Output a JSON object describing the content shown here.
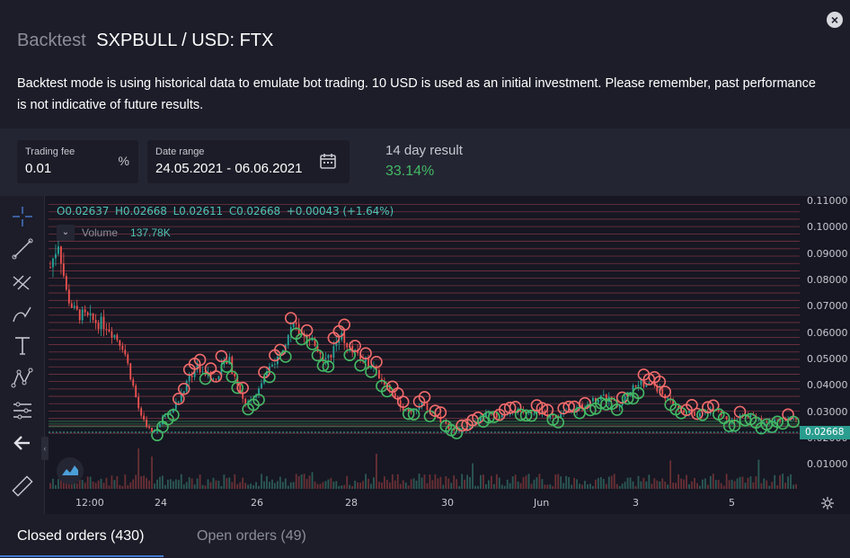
{
  "header": {
    "title_prefix": "Backtest",
    "title_main": "SXPBULL / USD: FTX",
    "description": "Backtest mode is using historical data to emulate bot trading. 10 USD is used as an initial investment. Please remember, past performance is not indicative of future results."
  },
  "controls": {
    "trading_fee": {
      "label": "Trading fee",
      "value": "0.01",
      "suffix": "%"
    },
    "date_range": {
      "label": "Date range",
      "value": "24.05.2021 - 06.06.2021"
    },
    "result": {
      "label": "14 day result",
      "value": "33.14%"
    }
  },
  "chart": {
    "legend": {
      "open": "O0.02637",
      "high": "H0.02668",
      "low": "L0.02611",
      "close": "C0.02668",
      "change": "+0.00043 (+1.64%)"
    },
    "volume": {
      "label": "Volume",
      "value": "137.78K"
    },
    "current_price": "0.02668",
    "colors": {
      "up": "#26a69a",
      "down": "#ef5350",
      "buy_marker": "#44b865",
      "sell_marker": "#f06b6b",
      "grid_line": "#c94a5a"
    }
  },
  "chart_data": {
    "type": "candlestick",
    "y_ticks": [
      "0.11000",
      "0.10000",
      "0.09000",
      "0.08000",
      "0.07000",
      "0.06000",
      "0.05000",
      "0.04000",
      "0.03000",
      "0.02000",
      "0.01000"
    ],
    "x_ticks": [
      "12:00",
      "24",
      "26",
      "28",
      "30",
      "Jun",
      "3",
      "5"
    ],
    "ylim": [
      0.005,
      0.11
    ],
    "close_path": [
      [
        0.0,
        0.085
      ],
      [
        0.01,
        0.095
      ],
      [
        0.02,
        0.075
      ],
      [
        0.03,
        0.068
      ],
      [
        0.05,
        0.065
      ],
      [
        0.07,
        0.063
      ],
      [
        0.09,
        0.055
      ],
      [
        0.11,
        0.03
      ],
      [
        0.125,
        0.022
      ],
      [
        0.14,
        0.028
      ],
      [
        0.16,
        0.035
      ],
      [
        0.18,
        0.048
      ],
      [
        0.2,
        0.042
      ],
      [
        0.22,
        0.05
      ],
      [
        0.24,
        0.033
      ],
      [
        0.26,
        0.04
      ],
      [
        0.28,
        0.052
      ],
      [
        0.3,
        0.063
      ],
      [
        0.32,
        0.058
      ],
      [
        0.34,
        0.05
      ],
      [
        0.36,
        0.058
      ],
      [
        0.38,
        0.052
      ],
      [
        0.4,
        0.046
      ],
      [
        0.42,
        0.038
      ],
      [
        0.44,
        0.03
      ],
      [
        0.46,
        0.033
      ],
      [
        0.48,
        0.027
      ],
      [
        0.5,
        0.022
      ],
      [
        0.52,
        0.025
      ],
      [
        0.54,
        0.03
      ],
      [
        0.56,
        0.028
      ],
      [
        0.58,
        0.031
      ],
      [
        0.6,
        0.03
      ],
      [
        0.62,
        0.028
      ],
      [
        0.64,
        0.03
      ],
      [
        0.66,
        0.033
      ],
      [
        0.68,
        0.036
      ],
      [
        0.7,
        0.033
      ],
      [
        0.72,
        0.04
      ],
      [
        0.74,
        0.042
      ],
      [
        0.76,
        0.035
      ],
      [
        0.78,
        0.03
      ],
      [
        0.8,
        0.029
      ],
      [
        0.82,
        0.031
      ],
      [
        0.84,
        0.027
      ],
      [
        0.86,
        0.029
      ],
      [
        0.88,
        0.026
      ],
      [
        0.9,
        0.027
      ],
      [
        0.92,
        0.0267
      ]
    ]
  },
  "toolbar": {
    "tools": [
      "crosshair-icon",
      "trend-line-icon",
      "fib-icon",
      "brush-icon",
      "text-icon",
      "pattern-icon",
      "prediction-icon",
      "back-arrow-icon",
      "ruler-icon"
    ]
  },
  "tabs": [
    {
      "label": "Closed orders (430)"
    },
    {
      "label": "Open orders (49)"
    }
  ]
}
